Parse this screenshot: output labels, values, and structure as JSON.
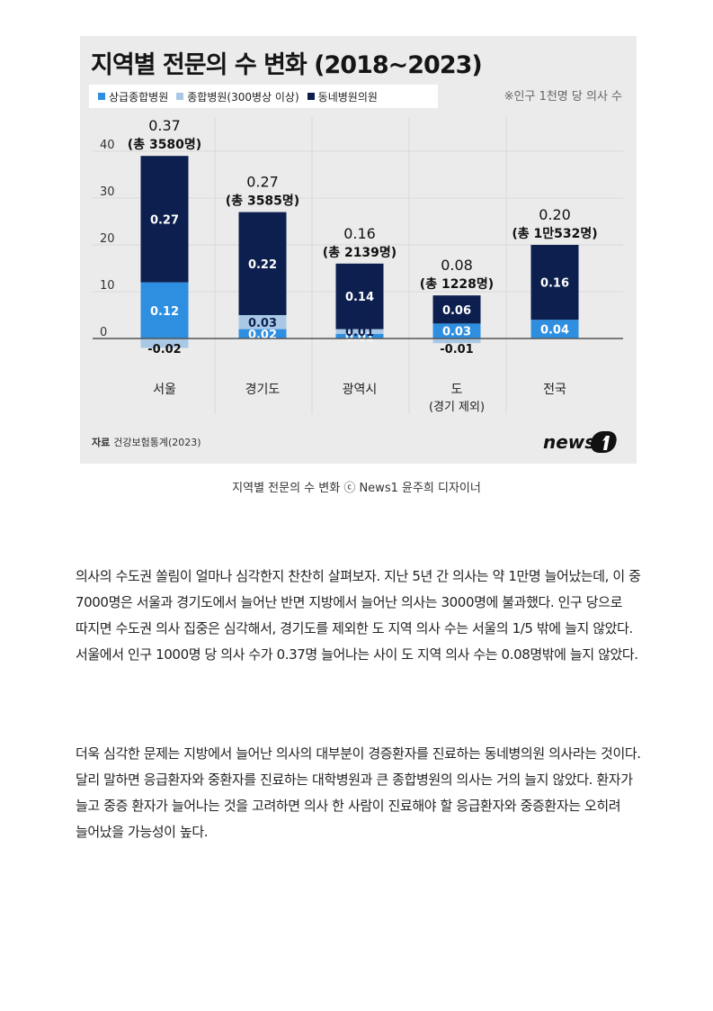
{
  "figure": {
    "title": "지역별 전문의 수 변화 (2018~2023)",
    "legend": [
      {
        "label": "상급종합병원",
        "color": "#2e8fe0"
      },
      {
        "label": "종합병원(300병상 이상)",
        "color": "#a9c8e6"
      },
      {
        "label": "동네병원의원",
        "color": "#0d1f4f"
      }
    ],
    "note": "※인구 1천명 당 의사 수",
    "source_label": "자료",
    "source_text": "건강보험통계(2023)",
    "logo_text": "news1",
    "caption": "지역별 전문의 수 변화 ⓒ News1 윤주희 디자이너"
  },
  "chart_data": {
    "type": "bar",
    "stacked": true,
    "categories": [
      "서울",
      "경기도",
      "광역시",
      "도",
      "전국"
    ],
    "category_sublabels": [
      "",
      "",
      "",
      "(경기 제외)",
      ""
    ],
    "yticks": [
      0,
      10,
      20,
      30,
      40
    ],
    "ylim": [
      -3,
      43
    ],
    "series": [
      {
        "name": "상급종합병원",
        "color": "#2e8fe0",
        "scaled": [
          12,
          2,
          1,
          3.2,
          4
        ],
        "labels": [
          "0.12",
          "0.02",
          "0.01",
          "0.03",
          "0.04"
        ]
      },
      {
        "name": "종합병원(300병상 이상)",
        "color": "#a9c8e6",
        "scaled": [
          -2,
          3,
          1,
          -1,
          0
        ],
        "labels": [
          "-0.02",
          "0.03",
          "0.01",
          "-0.01",
          ""
        ]
      },
      {
        "name": "동네병원의원",
        "color": "#0d1f4f",
        "scaled": [
          27,
          22,
          14,
          6,
          16
        ],
        "labels": [
          "0.27",
          "0.22",
          "0.14",
          "0.06",
          "0.16"
        ]
      }
    ],
    "totals": [
      "0.37",
      "0.27",
      "0.16",
      "0.08",
      "0.20"
    ],
    "total_counts": [
      "(총 3580명)",
      "(총 3585명)",
      "(총 2139명)",
      "(총 1228명)",
      "(총 1만532명)"
    ]
  },
  "article": {
    "paragraphs": [
      "의사의 수도권 쏠림이 얼마나 심각한지 찬찬히 살펴보자. 지난 5년 간 의사는 약 1만명 늘어났는데, 이 중 7000명은 서울과 경기도에서 늘어난 반면 지방에서 늘어난 의사는 3000명에 불과했다. 인구 당으로 따지면 수도권 의사 집중은 심각해서, 경기도를 제외한 도 지역 의사 수는 서울의 1/5 밖에 늘지 않았다. 서울에서 인구 1000명 당 의사 수가 0.37명 늘어나는 사이 도 지역 의사 수는 0.08명밖에 늘지 않았다.",
      "더욱 심각한 문제는 지방에서 늘어난 의사의 대부분이 경증환자를 진료하는 동네병의원 의사라는 것이다. 달리 말하면 응급환자와 중환자를 진료하는 대학병원과 큰 종합병원의 의사는 거의 늘지 않았다. 환자가 늘고 중증 환자가 늘어나는 것을 고려하면 의사 한 사람이 진료해야 할 응급환자와 중증환자는 오히려 늘어났을 가능성이 높다."
    ]
  }
}
